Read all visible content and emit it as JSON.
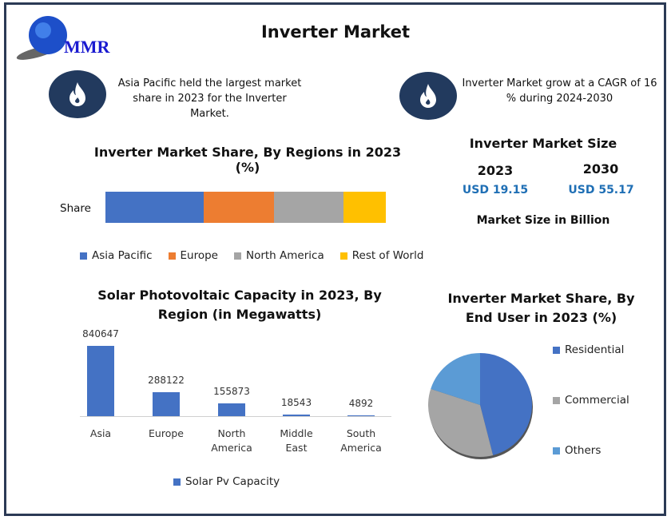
{
  "header": {
    "title": "Inverter Market",
    "logo_text": "MMR"
  },
  "notes": [
    {
      "icon": "flame-icon",
      "text": "Asia Pacific held the largest market share in 2023 for the Inverter Market."
    },
    {
      "icon": "flame-icon",
      "text": "Inverter Market grow at a CAGR of 16 % during 2024-2030"
    }
  ],
  "market_size": {
    "title": "Inverter Market Size",
    "years": [
      {
        "year": "2023",
        "value": "USD 19.15"
      },
      {
        "year": "2030",
        "value": "USD 55.17"
      }
    ],
    "unit_label": "Market Size in Billion"
  },
  "chart_data": [
    {
      "type": "bar",
      "stacked": true,
      "title": "Inverter Market Share, By Regions in 2023 (%)",
      "categories": [
        "Share"
      ],
      "series": [
        {
          "name": "Asia Pacific",
          "values": [
            35
          ],
          "color": "#4472c4"
        },
        {
          "name": "Europe",
          "values": [
            25
          ],
          "color": "#ed7d31"
        },
        {
          "name": "North America",
          "values": [
            25
          ],
          "color": "#a5a5a5"
        },
        {
          "name": "Rest of World",
          "values": [
            15
          ],
          "color": "#ffc000"
        }
      ],
      "legend": "bottom"
    },
    {
      "type": "bar",
      "title": "Solar Photovoltaic Capacity in 2023, By Region  (in Megawatts)",
      "categories": [
        "Asia",
        "Europe",
        "North America",
        "Middle East",
        "South America"
      ],
      "series": [
        {
          "name": "Solar Pv Capacity",
          "values": [
            840647,
            288122,
            155873,
            18543,
            4892
          ],
          "color": "#4472c4"
        }
      ],
      "legend": "bottom"
    },
    {
      "type": "pie",
      "title": "Inverter Market Share, By End User in 2023 (%)",
      "categories": [
        "Residential",
        "Commercial",
        "Others"
      ],
      "values": [
        46,
        34,
        20
      ],
      "colors": [
        "#4472c4",
        "#a5a5a5",
        "#5b9bd5"
      ],
      "legend": "right"
    }
  ]
}
